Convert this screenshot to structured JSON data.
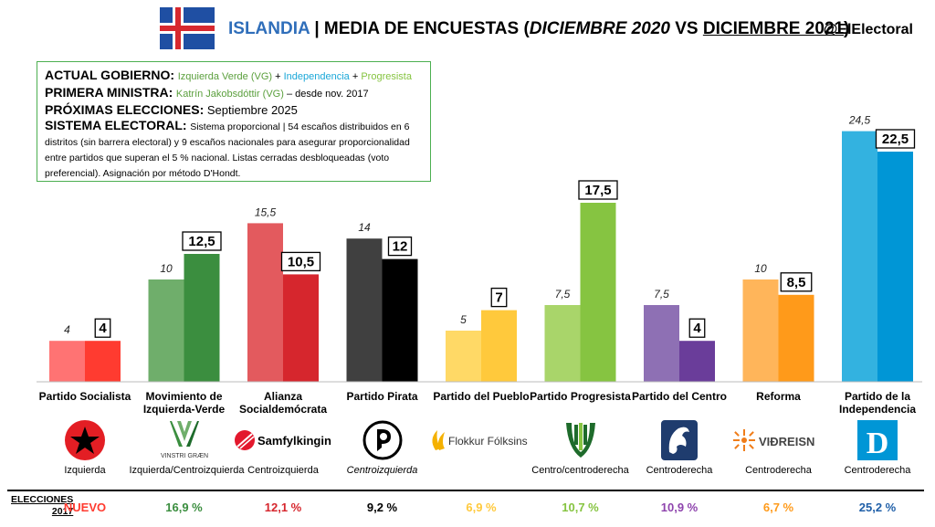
{
  "header": {
    "country": "ISLANDIA",
    "separator": "|",
    "title_prefix": "MEDIA DE ENCUESTAS (",
    "date_old": "DICIEMBRE 2020",
    "vs": " VS ",
    "date_new": "DICIEMBRE 2021",
    "title_suffix": ")",
    "handle": "@ElElectoral"
  },
  "info": {
    "gov_label": "ACTUAL GOBIERNO:",
    "gov_p1": "Izquierda Verde (VG)",
    "plus": " + ",
    "gov_p2": "Independencia",
    "gov_p3": "Progresista",
    "pm_label": "PRIMERA MINISTRA:",
    "pm_name": "Katrín Jakobsdóttir (VG)",
    "pm_since": " – desde nov. 2017",
    "next_label": "PRÓXIMAS ELECCIONES:",
    "next_value": " Septiembre 2025",
    "system_label": "SISTEMA ELECTORAL:",
    "system_text": "Sistema proporcional | 54 escaños distribuidos en 6 distritos (sin barrera electoral) y 9 escaños nacionales para asegurar proporcionalidad entre partidos que superan el 5 % nacional. Listas cerradas desbloqueadas (voto preferencial). Asignación por método D'Hondt.",
    "colors": {
      "border": "#4CAF50",
      "vg": "#5a9f3c",
      "indep": "#1aa7d8",
      "prog": "#86c441"
    }
  },
  "chart_data": {
    "type": "bar",
    "categories": [
      "Partido Socialista",
      "Movimiento de Izquierda-Verde",
      "Alianza Socialdemócrata",
      "Partido Pirata",
      "Partido del Pueblo",
      "Partido Progresista",
      "Partido del Centro",
      "Reforma",
      "Partido de la Independencia"
    ],
    "category_lines": [
      [
        "Partido Socialista"
      ],
      [
        "Movimiento de",
        "Izquierda-Verde"
      ],
      [
        "Alianza",
        "Socialdemócrata"
      ],
      [
        "Partido Pirata"
      ],
      [
        "Partido del Pueblo"
      ],
      [
        "Partido Progresista"
      ],
      [
        "Partido del Centro"
      ],
      [
        "Reforma"
      ],
      [
        "Partido de la",
        "Independencia"
      ]
    ],
    "series": [
      {
        "name": "DICIEMBRE 2020",
        "values": [
          4,
          10,
          15.5,
          14,
          5,
          7.5,
          7.5,
          10,
          24.5
        ],
        "labels": [
          "4",
          "10",
          "15,5",
          "14",
          "5",
          "7,5",
          "7,5",
          "10",
          "24,5"
        ]
      },
      {
        "name": "DICIEMBRE 2021",
        "values": [
          4,
          12.5,
          10.5,
          12,
          7,
          17.5,
          4,
          8.5,
          22.5
        ],
        "labels": [
          "4",
          "12,5",
          "10,5",
          "12",
          "7",
          "17,5",
          "4",
          "8,5",
          "22,5"
        ]
      }
    ],
    "colors_old": [
      "#FF7373",
      "#6FAE6B",
      "#E35A5E",
      "#404040",
      "#FFD966",
      "#A9D56A",
      "#8E70B4",
      "#FFB55A",
      "#33B2E0"
    ],
    "colors_new": [
      "#FF3B30",
      "#3B8E3F",
      "#D6262D",
      "#000000",
      "#FFC93C",
      "#86C441",
      "#6A3D9A",
      "#FF9A1A",
      "#0096D6"
    ],
    "ylim": [
      0,
      25
    ],
    "legend": "none",
    "grid": false
  },
  "parties": [
    {
      "logo": "Izquierda",
      "logo_type": "star",
      "ideology": "Izquierda",
      "italic": false
    },
    {
      "logo": "VINSTRI GRÆN",
      "logo_type": "vg",
      "ideology": "Izquierda/Centroizquierda",
      "italic": false
    },
    {
      "logo": "Samfylkingin",
      "logo_type": "samf",
      "ideology": "Centroizquierda",
      "italic": false
    },
    {
      "logo": "Píratar",
      "logo_type": "pirate",
      "ideology": "Centroizquierda",
      "italic": true
    },
    {
      "logo": "Flokkur Fólksins",
      "logo_type": "flokkur",
      "ideology": "",
      "italic": false
    },
    {
      "logo": "Framsókn",
      "logo_type": "prog",
      "ideology": "Centro/centroderecha",
      "italic": false
    },
    {
      "logo": "Miðflokkurinn",
      "logo_type": "centre",
      "ideology": "Centroderecha",
      "italic": false
    },
    {
      "logo": "VIÐREISN",
      "logo_type": "vidreisn",
      "ideology": "Centroderecha",
      "italic": false
    },
    {
      "logo": "D",
      "logo_type": "d",
      "ideology": "Centroderecha",
      "italic": false
    }
  ],
  "elections": {
    "label_line1": "ELECCIONES",
    "label_line2": "2017",
    "results": [
      "NUEVO",
      "16,9 %",
      "12,1 %",
      "9,2 %",
      "6,9 %",
      "10,7 %",
      "10,9 %",
      "6,7 %",
      "25,2 %"
    ],
    "colors": [
      "#FF3B30",
      "#3B8E3F",
      "#D6262D",
      "#000000",
      "#FFC93C",
      "#86C441",
      "#8E44AD",
      "#FF9A1A",
      "#1F5FA8"
    ]
  }
}
